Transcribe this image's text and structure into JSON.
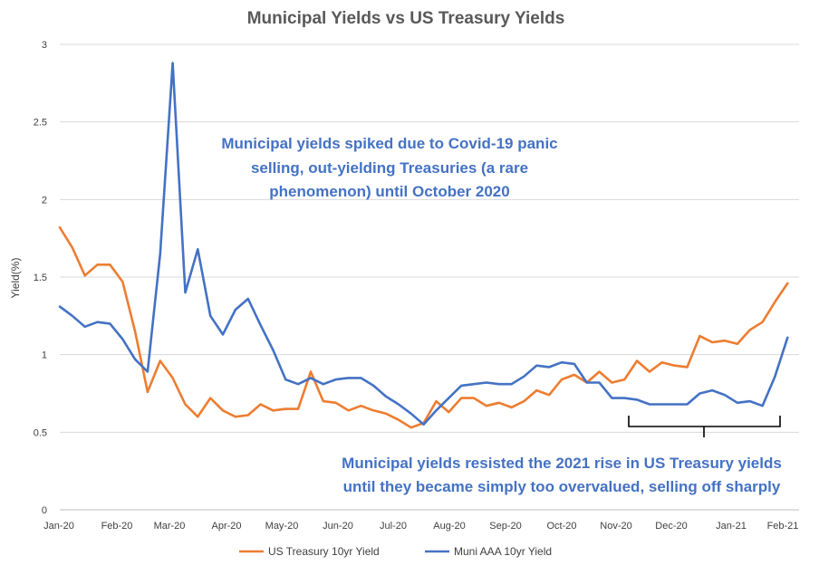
{
  "chart_data": {
    "type": "line",
    "title": "Municipal Yields vs US Treasury Yields",
    "xlabel": "",
    "ylabel": "Yield(%)",
    "ylim": [
      0,
      3
    ],
    "yticks": [
      "0",
      "0.5",
      "1",
      "1.5",
      "2",
      "2.5",
      "3"
    ],
    "x_tick_labels": [
      "Jan-20",
      "Feb-20",
      "Mar-20",
      "Apr-20",
      "May-20",
      "Jun-20",
      "Jul-20",
      "Aug-20",
      "Sep-20",
      "Oct-20",
      "Nov-20",
      "Dec-20",
      "Jan-21",
      "Feb-21"
    ],
    "grid": true,
    "legend_position": "bottom",
    "series": [
      {
        "name": "US Treasury 10yr Yield",
        "color": "#ED7D31",
        "values": [
          1.82,
          1.69,
          1.51,
          1.58,
          1.58,
          1.47,
          1.15,
          0.76,
          0.96,
          0.85,
          0.68,
          0.6,
          0.72,
          0.64,
          0.6,
          0.61,
          0.68,
          0.64,
          0.65,
          0.65,
          0.89,
          0.7,
          0.69,
          0.64,
          0.67,
          0.64,
          0.62,
          0.58,
          0.53,
          0.56,
          0.7,
          0.63,
          0.72,
          0.72,
          0.67,
          0.69,
          0.66,
          0.7,
          0.77,
          0.74,
          0.84,
          0.87,
          0.82,
          0.89,
          0.82,
          0.84,
          0.96,
          0.89,
          0.95,
          0.93,
          0.92,
          1.12,
          1.08,
          1.09,
          1.07,
          1.16,
          1.21,
          1.34,
          1.46
        ]
      },
      {
        "name": "Muni AAA 10yr Yield",
        "color": "#4472C4",
        "values": [
          1.31,
          1.25,
          1.18,
          1.21,
          1.2,
          1.1,
          0.97,
          0.89,
          1.65,
          2.88,
          1.4,
          1.68,
          1.25,
          1.13,
          1.29,
          1.36,
          1.19,
          1.03,
          0.84,
          0.81,
          0.85,
          0.81,
          0.84,
          0.85,
          0.85,
          0.8,
          0.73,
          0.68,
          0.62,
          0.55,
          0.64,
          0.72,
          0.8,
          0.81,
          0.82,
          0.81,
          0.81,
          0.86,
          0.93,
          0.92,
          0.95,
          0.94,
          0.82,
          0.82,
          0.72,
          0.72,
          0.71,
          0.68,
          0.68,
          0.68,
          0.68,
          0.75,
          0.77,
          0.74,
          0.69,
          0.7,
          0.67,
          0.86,
          1.11
        ]
      }
    ],
    "annotations": [
      {
        "lines": [
          "Municipal yields spiked due to Covid-19 panic",
          "selling, out-yielding Treasuries (a rare",
          "phenomenon) until October 2020"
        ]
      },
      {
        "lines": [
          "Municipal yields resisted the 2021 rise in US Treasury yields",
          "until they became simply too overvalued, selling off sharply"
        ]
      }
    ]
  }
}
